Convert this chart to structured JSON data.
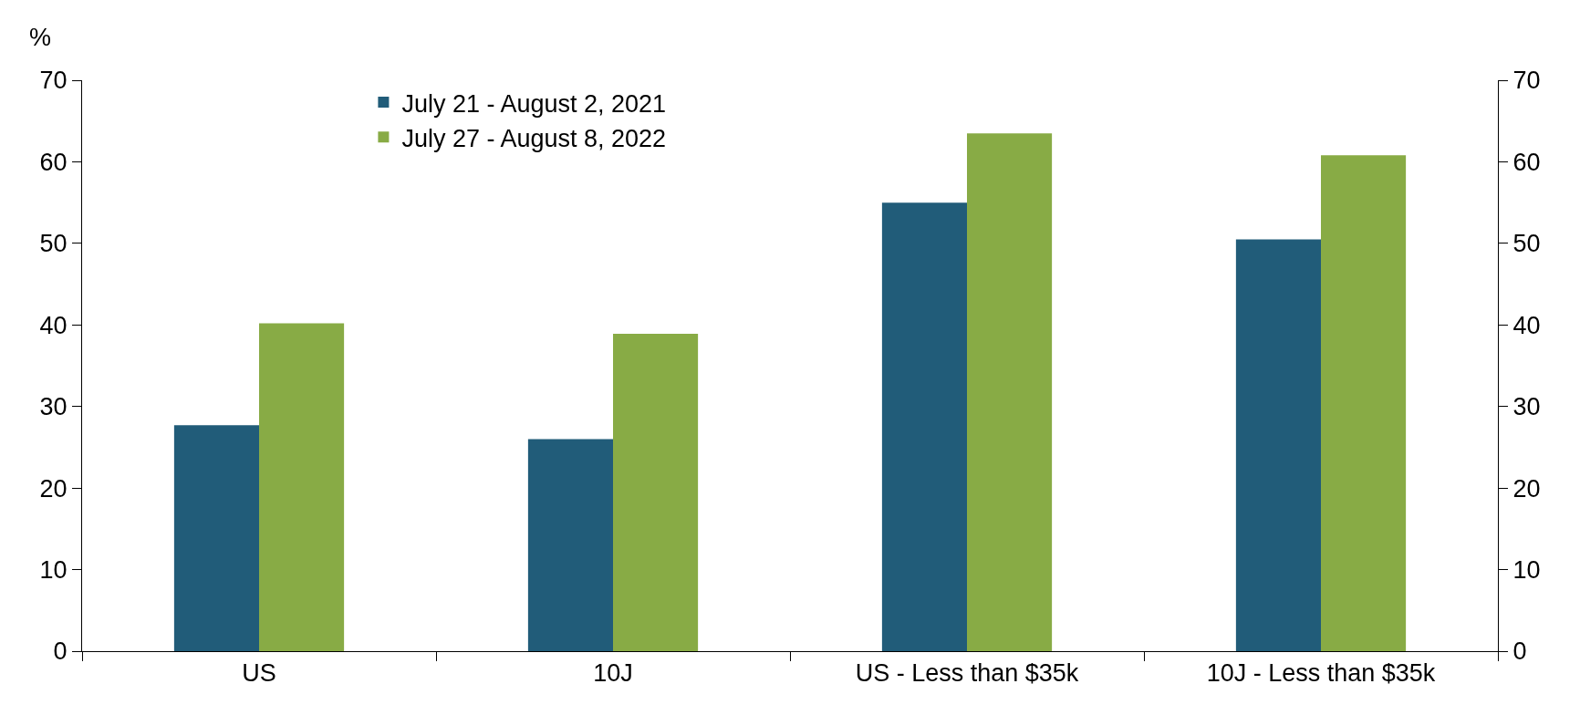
{
  "chart_data": {
    "type": "bar",
    "ylabel": "%",
    "categories": [
      "US",
      "10J",
      "US - Less than $35k",
      "10J - Less than $35k"
    ],
    "series": [
      {
        "name": "July 21 - August 2, 2021",
        "color": "#215c79",
        "values": [
          27.7,
          26.0,
          55.0,
          50.5
        ]
      },
      {
        "name": "July 27 - August 8, 2022",
        "color": "#88ab45",
        "values": [
          40.2,
          38.9,
          63.5,
          60.8
        ]
      }
    ],
    "ylim": [
      0,
      70
    ],
    "yticks": [
      0,
      10,
      20,
      30,
      40,
      50,
      60,
      70
    ],
    "y2lim": [
      0,
      70
    ],
    "y2ticks": [
      0,
      10,
      20,
      30,
      40,
      50,
      60,
      70
    ],
    "grid": false,
    "legend": "top left"
  }
}
